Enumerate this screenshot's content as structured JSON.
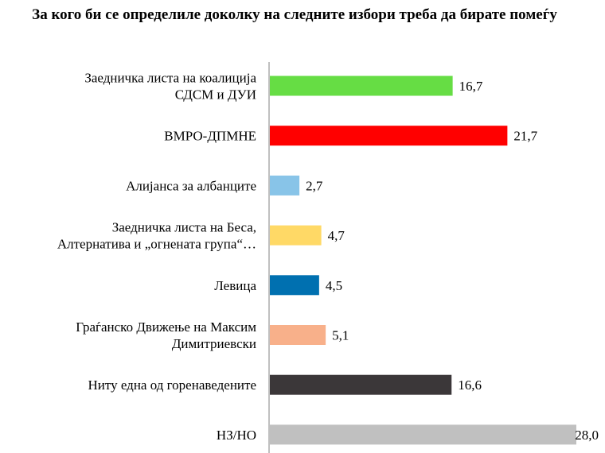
{
  "chart_data": {
    "type": "bar",
    "orientation": "horizontal",
    "title": "За кого би се определиле доколку на следните избори треба да бирате помеѓу",
    "categories": [
      [
        "Заедничка листа на коалиција",
        "СДСМ и ДУИ"
      ],
      [
        "ВМРО-ДПМНЕ"
      ],
      [
        "Алијанса за албанците"
      ],
      [
        "Заедничка листа на Беса,",
        "Алтернатива и „огнената група“…"
      ],
      [
        "Левица"
      ],
      [
        "Граѓанско Движење на Максим",
        "Димитриевски"
      ],
      [
        "Ниту една од горенаведените"
      ],
      [
        "НЗ/НО"
      ]
    ],
    "values": [
      16.7,
      21.7,
      2.7,
      4.7,
      4.5,
      5.1,
      16.6,
      28.0
    ],
    "value_labels": [
      "16,7",
      "21,7",
      "2,7",
      "4,7",
      "4,5",
      "5,1",
      "16,6",
      "28,0"
    ],
    "colors": [
      "#66dd44",
      "#ff0000",
      "#88c4e8",
      "#ffd966",
      "#0070b0",
      "#f8b08a",
      "#3b3739",
      "#c0c0c0"
    ],
    "xlim": [
      0,
      28
    ],
    "grid": false,
    "legend": "none"
  }
}
